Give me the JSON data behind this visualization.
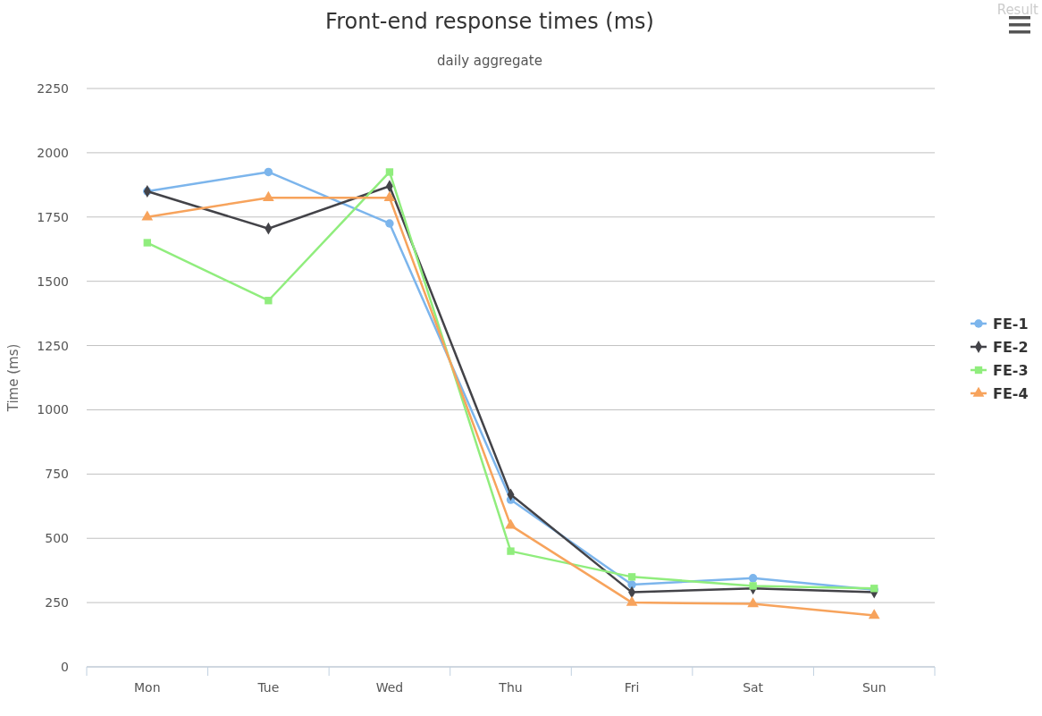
{
  "chart_data": {
    "type": "line",
    "title": "Front-end response times (ms)",
    "subtitle": "daily aggregate",
    "ylabel": "Time (ms)",
    "annotations": [
      "Result"
    ],
    "categories": [
      "Mon",
      "Tue",
      "Wed",
      "Thu",
      "Fri",
      "Sat",
      "Sun"
    ],
    "series": [
      {
        "name": "FE-1",
        "color": "#7cb5ec",
        "marker": "circle",
        "values": [
          1850,
          1925,
          1725,
          650,
          320,
          345,
          300
        ]
      },
      {
        "name": "FE-2",
        "color": "#434348",
        "marker": "diamond",
        "values": [
          1850,
          1705,
          1870,
          670,
          290,
          305,
          290
        ]
      },
      {
        "name": "FE-3",
        "color": "#90ed7d",
        "marker": "square",
        "values": [
          1650,
          1425,
          1925,
          450,
          350,
          315,
          305
        ]
      },
      {
        "name": "FE-4",
        "color": "#f7a35c",
        "marker": "triangle",
        "values": [
          1750,
          1825,
          1825,
          550,
          250,
          245,
          200
        ]
      }
    ],
    "ylim": [
      0,
      2250
    ],
    "yticks": [
      0,
      250,
      500,
      750,
      1000,
      1250,
      1500,
      1750,
      2000,
      2250
    ],
    "grid": "y",
    "legend": "right"
  }
}
